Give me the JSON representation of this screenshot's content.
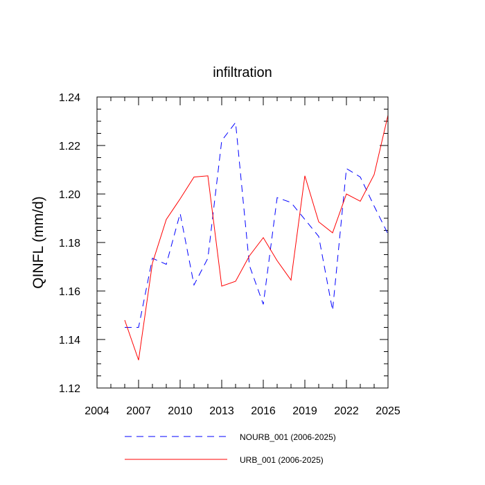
{
  "chart_data": {
    "type": "line",
    "title": "infiltration",
    "xlabel": "",
    "ylabel": "QINFL  (mm/d)",
    "xlim": [
      2004,
      2025
    ],
    "ylim": [
      1.12,
      1.24
    ],
    "x_ticks": [
      2004,
      2007,
      2010,
      2013,
      2016,
      2019,
      2022,
      2025
    ],
    "x_tick_labels": [
      "2004",
      "2007",
      "2010",
      "2013",
      "2016",
      "2019",
      "2022",
      "2025"
    ],
    "y_ticks": [
      1.12,
      1.14,
      1.16,
      1.18,
      1.2,
      1.22,
      1.24
    ],
    "y_tick_labels": [
      "1.12",
      "1.14",
      "1.16",
      "1.18",
      "1.20",
      "1.22",
      "1.24"
    ],
    "grid": false,
    "legend_position": "bottom",
    "x": [
      2006,
      2007,
      2008,
      2009,
      2010,
      2011,
      2012,
      2013,
      2014,
      2015,
      2016,
      2017,
      2018,
      2019,
      2020,
      2021,
      2022,
      2023,
      2024,
      2025
    ],
    "series": [
      {
        "name": "NOURB_001 (2006-2025)",
        "color": "#0000ff",
        "dash": "dashed",
        "values": [
          1.145,
          1.145,
          1.1735,
          1.171,
          1.192,
          1.1625,
          1.1735,
          1.222,
          1.2295,
          1.1705,
          1.1545,
          1.1985,
          1.1965,
          1.1895,
          1.1825,
          1.152,
          1.2105,
          1.207,
          1.195,
          1.1835
        ]
      },
      {
        "name": "URB_001 (2006-2025)",
        "color": "#ff0000",
        "dash": "solid",
        "values": [
          1.148,
          1.1315,
          1.1715,
          1.1895,
          1.198,
          1.207,
          1.2075,
          1.162,
          1.164,
          1.1745,
          1.182,
          1.1725,
          1.1645,
          1.2075,
          1.1885,
          1.184,
          1.2,
          1.197,
          1.208,
          1.2325
        ]
      }
    ]
  }
}
